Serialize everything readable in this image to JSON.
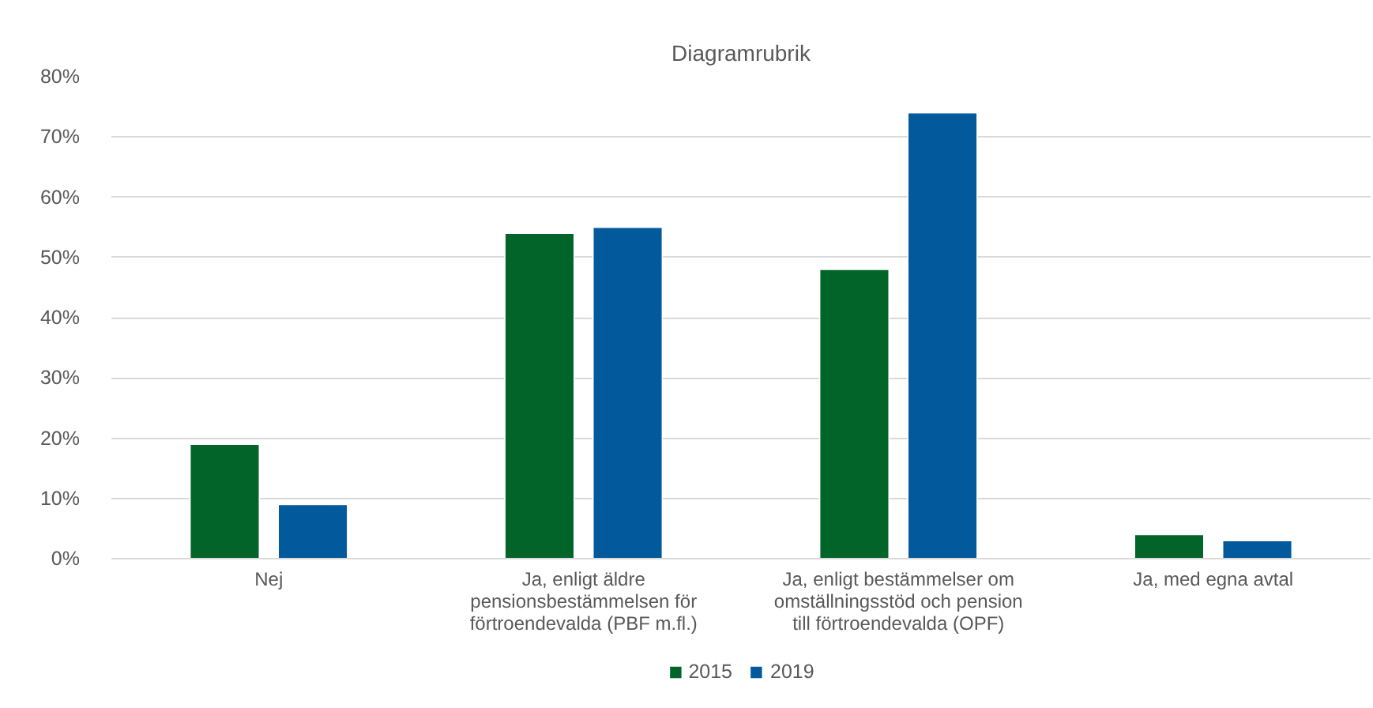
{
  "chart_data": {
    "type": "bar",
    "title": "Diagramrubrik",
    "categories": [
      "Nej",
      "Ja, enligt äldre pensionsbestämmelsen för förtroendevalda (PBF m.fl.)",
      "Ja, enligt bestämmelser om omställningsstöd och pension till förtroendevalda (OPF)",
      "Ja, med egna avtal"
    ],
    "series": [
      {
        "name": "2015",
        "color": "#036429",
        "values": [
          19,
          54,
          48,
          4
        ]
      },
      {
        "name": "2019",
        "color": "#02599c",
        "values": [
          9,
          55,
          74,
          3
        ]
      }
    ],
    "ylim": [
      0,
      80
    ],
    "yticks": [
      {
        "value": 0,
        "label": "0%"
      },
      {
        "value": 10,
        "label": "10%"
      },
      {
        "value": 20,
        "label": "20%"
      },
      {
        "value": 30,
        "label": "30%"
      },
      {
        "value": 40,
        "label": "40%"
      },
      {
        "value": 50,
        "label": "50%"
      },
      {
        "value": 60,
        "label": "60%"
      },
      {
        "value": 70,
        "label": "70%"
      },
      {
        "value": 80,
        "label": "80%"
      }
    ],
    "grid": "y",
    "legend": "bottom"
  }
}
